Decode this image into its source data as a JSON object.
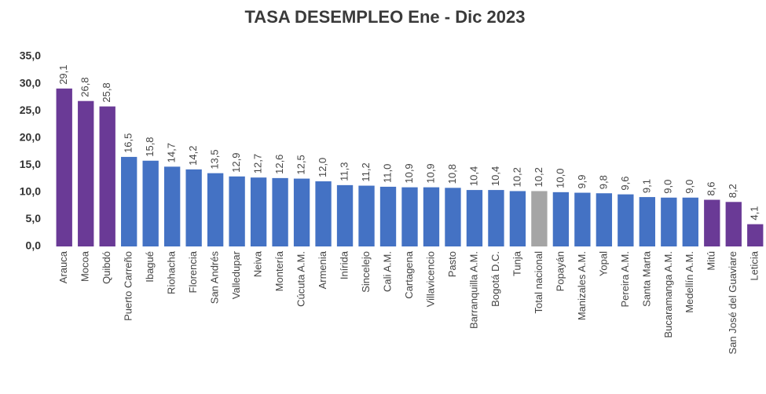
{
  "chart_data": {
    "type": "bar",
    "title": "TASA DESEMPLEO Ene - Dic 2023",
    "categories": [
      "Arauca",
      "Mocoa",
      "Quibdó",
      "Puerto Carreño",
      "Ibagué",
      "Riohacha",
      "Florencia",
      "San Andrés",
      "Valledupar",
      "Neiva",
      "Montería",
      "Cúcuta A.M.",
      "Armenia",
      "Inírida",
      "Sincelejo",
      "Cali A.M.",
      "Cartagena",
      "Villavicencio",
      "Pasto",
      "Barranquilla A.M.",
      "Bogotá D.C.",
      "Tunja",
      "Total nacional",
      "Popayán",
      "Manizales A.M.",
      "Yopal",
      "Pereira A.M.",
      "Santa Marta",
      "Bucaramanga A.M.",
      "Medellín A.M.",
      "Mitú",
      "San José del Guaviare",
      "Leticia"
    ],
    "values": [
      29.1,
      26.8,
      25.8,
      16.5,
      15.8,
      14.7,
      14.2,
      13.5,
      12.9,
      12.7,
      12.6,
      12.5,
      12.0,
      11.3,
      11.2,
      11.0,
      10.9,
      10.9,
      10.8,
      10.4,
      10.4,
      10.2,
      10.2,
      10.0,
      9.9,
      9.8,
      9.6,
      9.1,
      9.0,
      9.0,
      8.6,
      8.2,
      4.1
    ],
    "value_labels": [
      "29,1",
      "26,8",
      "25,8",
      "16,5",
      "15,8",
      "14,7",
      "14,2",
      "13,5",
      "12,9",
      "12,7",
      "12,6",
      "12,5",
      "12,0",
      "11,3",
      "11,2",
      "11,0",
      "10,9",
      "10,9",
      "10,8",
      "10,4",
      "10,4",
      "10,2",
      "10,2",
      "10,0",
      "9,9",
      "9,8",
      "9,6",
      "9,1",
      "9,0",
      "9,0",
      "8,6",
      "8,2",
      "4,1"
    ],
    "colors": [
      "#6a3a96",
      "#6a3a96",
      "#6a3a96",
      "#4472c4",
      "#4472c4",
      "#4472c4",
      "#4472c4",
      "#4472c4",
      "#4472c4",
      "#4472c4",
      "#4472c4",
      "#4472c4",
      "#4472c4",
      "#4472c4",
      "#4472c4",
      "#4472c4",
      "#4472c4",
      "#4472c4",
      "#4472c4",
      "#4472c4",
      "#4472c4",
      "#4472c4",
      "#a5a5a5",
      "#4472c4",
      "#4472c4",
      "#4472c4",
      "#4472c4",
      "#4472c4",
      "#4472c4",
      "#4472c4",
      "#6a3a96",
      "#6a3a96",
      "#6a3a96"
    ],
    "ylim": [
      0,
      35
    ],
    "yticks": [
      {
        "value": 0,
        "label": "0,0"
      },
      {
        "value": 5,
        "label": "5,0"
      },
      {
        "value": 10,
        "label": "10,0"
      },
      {
        "value": 15,
        "label": "15,0"
      },
      {
        "value": 20,
        "label": "20,0"
      },
      {
        "value": 25,
        "label": "25,0"
      },
      {
        "value": 30,
        "label": "30,0"
      },
      {
        "value": 35,
        "label": "35,0"
      }
    ],
    "grid": false
  }
}
